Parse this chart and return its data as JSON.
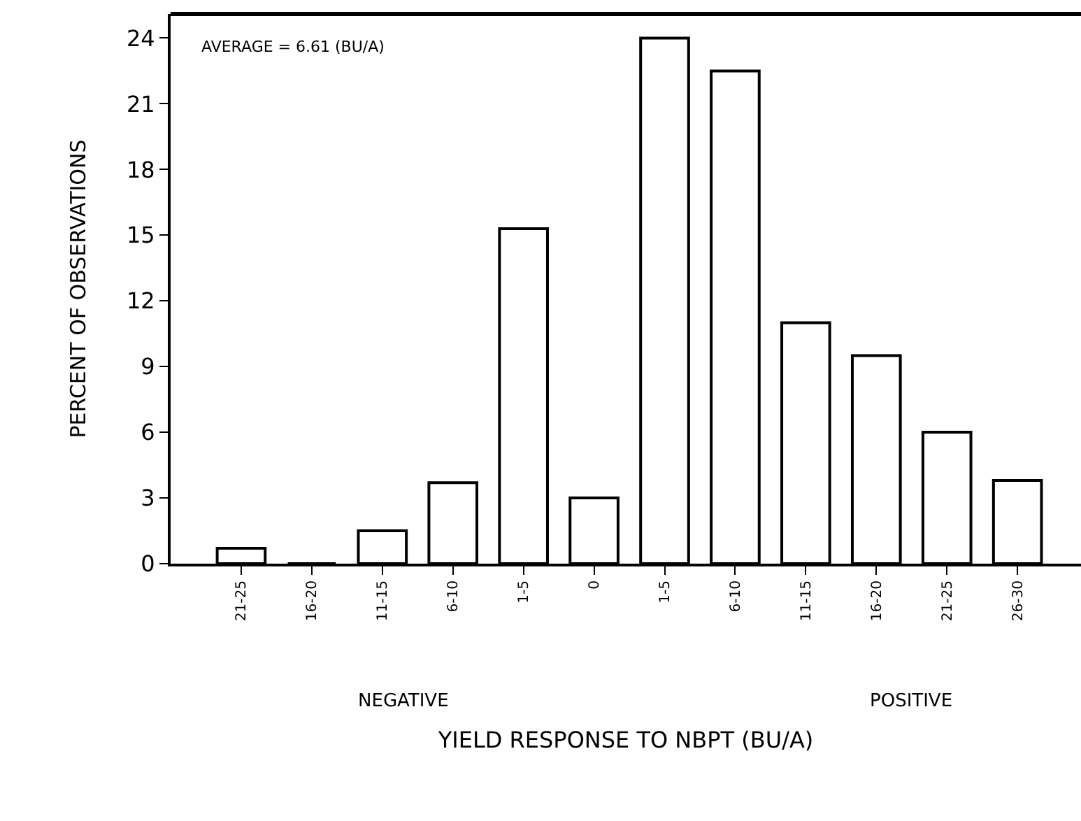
{
  "chart_data": {
    "type": "bar",
    "xlabel": "YIELD RESPONSE TO NBPT (BU/A)",
    "ylabel": "PERCENT OF OBSERVATIONS",
    "categories": [
      "21-25",
      "16-20",
      "11-15",
      "6-10",
      "1-5",
      "0",
      "1-5",
      "6-10",
      "11-15",
      "16-20",
      "21-25",
      "26-30"
    ],
    "values": [
      0.7,
      0,
      1.5,
      3.7,
      15.3,
      3.0,
      24.0,
      22.5,
      11.0,
      9.5,
      6.0,
      3.8
    ],
    "color": "#ffffff",
    "ylim": [
      0,
      25.1
    ],
    "yticks": [
      0,
      3,
      6,
      9,
      12,
      15,
      18,
      21,
      24
    ],
    "legend": false,
    "annotations": [
      "AVERAGE = 6.61 (BU/A)",
      "NEGATIVE",
      "POSITIVE"
    ]
  }
}
